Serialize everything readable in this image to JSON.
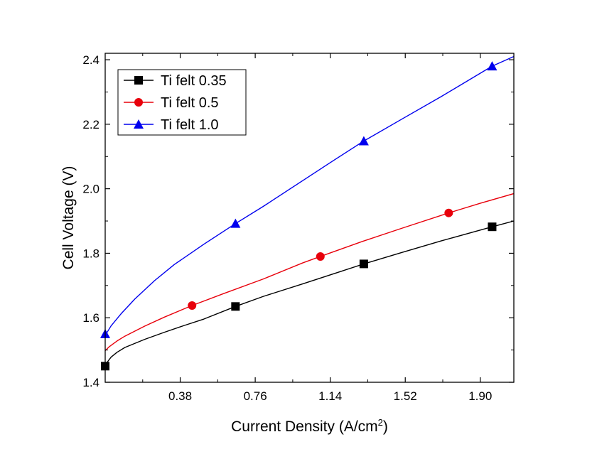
{
  "chart_data": {
    "type": "line",
    "xlabel": "Current Density (A/cm",
    "xlabel_sup": "2",
    "xlabel_tail": ")",
    "ylabel": "Cell Voltage (V)",
    "xlim": [
      0.0,
      2.07
    ],
    "ylim": [
      1.4,
      2.42
    ],
    "xticks": [
      0.38,
      0.76,
      1.14,
      1.52,
      1.9
    ],
    "xtick_labels": [
      "0.38",
      "0.76",
      "1.14",
      "1.52",
      "1.90"
    ],
    "yticks": [
      1.4,
      1.6,
      1.8,
      2.0,
      2.2,
      2.4
    ],
    "ytick_labels": [
      "1.4",
      "1.6",
      "1.8",
      "2.0",
      "2.2",
      "2.4"
    ],
    "grid": false,
    "legend_position": "top-left",
    "series": [
      {
        "name": "Ti felt 0.35",
        "color": "#000000",
        "marker": "square",
        "markers": [
          {
            "x": 0.0,
            "y": 1.45
          },
          {
            "x": 0.66,
            "y": 1.635
          },
          {
            "x": 1.31,
            "y": 1.767
          },
          {
            "x": 1.96,
            "y": 1.882
          }
        ],
        "curve": [
          {
            "x": 0.0,
            "y": 1.445
          },
          {
            "x": 0.01,
            "y": 1.462
          },
          {
            "x": 0.03,
            "y": 1.478
          },
          {
            "x": 0.06,
            "y": 1.493
          },
          {
            "x": 0.1,
            "y": 1.508
          },
          {
            "x": 0.2,
            "y": 1.533
          },
          {
            "x": 0.3,
            "y": 1.555
          },
          {
            "x": 0.4,
            "y": 1.576
          },
          {
            "x": 0.5,
            "y": 1.596
          },
          {
            "x": 0.66,
            "y": 1.635
          },
          {
            "x": 0.8,
            "y": 1.666
          },
          {
            "x": 1.0,
            "y": 1.705
          },
          {
            "x": 1.2,
            "y": 1.745
          },
          {
            "x": 1.31,
            "y": 1.767
          },
          {
            "x": 1.5,
            "y": 1.802
          },
          {
            "x": 1.7,
            "y": 1.838
          },
          {
            "x": 1.96,
            "y": 1.882
          },
          {
            "x": 2.07,
            "y": 1.9
          }
        ]
      },
      {
        "name": "Ti felt 0.5",
        "color": "#e8000b",
        "marker": "circle",
        "markers": [
          {
            "x": 0.44,
            "y": 1.638
          },
          {
            "x": 1.09,
            "y": 1.79
          },
          {
            "x": 1.74,
            "y": 1.925
          }
        ],
        "curve": [
          {
            "x": 0.0,
            "y": 1.498
          },
          {
            "x": 0.02,
            "y": 1.51
          },
          {
            "x": 0.06,
            "y": 1.528
          },
          {
            "x": 0.1,
            "y": 1.543
          },
          {
            "x": 0.2,
            "y": 1.574
          },
          {
            "x": 0.3,
            "y": 1.602
          },
          {
            "x": 0.44,
            "y": 1.638
          },
          {
            "x": 0.6,
            "y": 1.675
          },
          {
            "x": 0.8,
            "y": 1.72
          },
          {
            "x": 1.0,
            "y": 1.77
          },
          {
            "x": 1.09,
            "y": 1.79
          },
          {
            "x": 1.3,
            "y": 1.836
          },
          {
            "x": 1.5,
            "y": 1.877
          },
          {
            "x": 1.74,
            "y": 1.925
          },
          {
            "x": 1.9,
            "y": 1.955
          },
          {
            "x": 2.07,
            "y": 1.985
          }
        ]
      },
      {
        "name": "Ti felt 1.0",
        "color": "#0000ee",
        "marker": "triangle",
        "markers": [
          {
            "x": 0.0,
            "y": 1.55
          },
          {
            "x": 0.66,
            "y": 1.892
          },
          {
            "x": 1.31,
            "y": 2.148
          },
          {
            "x": 1.96,
            "y": 2.38
          }
        ],
        "curve": [
          {
            "x": 0.0,
            "y": 1.545
          },
          {
            "x": 0.03,
            "y": 1.575
          },
          {
            "x": 0.08,
            "y": 1.612
          },
          {
            "x": 0.15,
            "y": 1.658
          },
          {
            "x": 0.25,
            "y": 1.715
          },
          {
            "x": 0.35,
            "y": 1.765
          },
          {
            "x": 0.5,
            "y": 1.828
          },
          {
            "x": 0.66,
            "y": 1.892
          },
          {
            "x": 0.8,
            "y": 1.945
          },
          {
            "x": 1.0,
            "y": 2.025
          },
          {
            "x": 1.15,
            "y": 2.085
          },
          {
            "x": 1.31,
            "y": 2.148
          },
          {
            "x": 1.5,
            "y": 2.215
          },
          {
            "x": 1.7,
            "y": 2.285
          },
          {
            "x": 1.96,
            "y": 2.38
          },
          {
            "x": 2.07,
            "y": 2.41
          }
        ]
      }
    ]
  }
}
